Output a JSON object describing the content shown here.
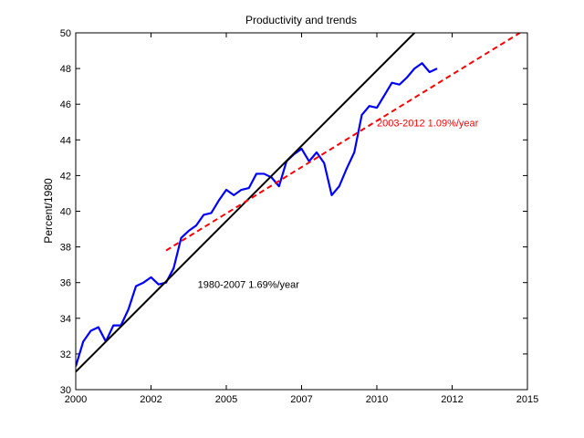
{
  "chart_data": {
    "type": "line",
    "title": "Productivity and trends",
    "xlabel": "",
    "ylabel": "Percent/1980",
    "xlim": [
      2000,
      2015
    ],
    "ylim": [
      30,
      50
    ],
    "x_ticks": [
      2000,
      2002.5,
      2005,
      2007.5,
      2010,
      2012.5,
      2015
    ],
    "x_tick_labels": [
      "2000",
      "2002",
      "2005",
      "2007",
      "2010",
      "2012",
      "2015"
    ],
    "y_ticks": [
      30,
      32,
      34,
      36,
      38,
      40,
      42,
      44,
      46,
      48,
      50
    ],
    "y_tick_labels": [
      "30",
      "32",
      "34",
      "36",
      "38",
      "40",
      "42",
      "44",
      "46",
      "48",
      "50"
    ],
    "grid": false,
    "legend": "none",
    "series": [
      {
        "color": "#0000ff",
        "style": "solid",
        "x": [
          2000.0,
          2000.25,
          2000.5,
          2000.75,
          2001.0,
          2001.25,
          2001.5,
          2001.75,
          2002.0,
          2002.25,
          2002.5,
          2002.75,
          2003.0,
          2003.25,
          2003.5,
          2003.75,
          2004.0,
          2004.25,
          2004.5,
          2004.75,
          2005.0,
          2005.25,
          2005.5,
          2005.75,
          2006.0,
          2006.25,
          2006.5,
          2006.75,
          2007.0,
          2007.25,
          2007.5,
          2007.75,
          2008.0,
          2008.25,
          2008.5,
          2008.75,
          2009.0,
          2009.25,
          2009.5,
          2009.75,
          2010.0,
          2010.25,
          2010.5,
          2010.75,
          2011.0,
          2011.25,
          2011.5,
          2011.75,
          2012.0
        ],
        "values": [
          31.3,
          32.7,
          33.3,
          33.5,
          32.7,
          33.6,
          33.6,
          34.5,
          35.8,
          36.0,
          36.3,
          35.9,
          36.0,
          36.8,
          38.5,
          38.9,
          39.2,
          39.8,
          39.9,
          40.6,
          41.2,
          40.9,
          41.2,
          41.3,
          42.1,
          42.1,
          41.9,
          41.4,
          42.8,
          43.2,
          43.5,
          42.8,
          43.3,
          42.7,
          40.9,
          41.4,
          42.4,
          43.3,
          45.4,
          45.9,
          45.8,
          46.5,
          47.2,
          47.1,
          47.5,
          48.0,
          48.3,
          47.8,
          48.0
        ]
      },
      {
        "color": "#000000",
        "style": "solid",
        "x": [
          2000.0,
          2011.25
        ],
        "values": [
          31.0,
          50.0
        ]
      },
      {
        "color": "#ff0000",
        "style": "dashed",
        "x": [
          2003.0,
          2014.75
        ],
        "values": [
          37.8,
          50.0
        ]
      }
    ],
    "annotations": [
      {
        "text": "1980-2007 1.69%/year",
        "x": 2004.05,
        "y": 35.9,
        "color": "#000000"
      },
      {
        "text": "2003-2012 1.09%/year",
        "x": 2010.0,
        "y": 44.95,
        "color": "#ff0000"
      }
    ]
  }
}
